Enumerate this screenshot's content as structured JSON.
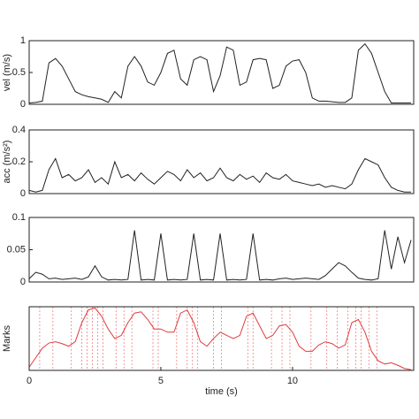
{
  "chart_data": [
    {
      "type": "line",
      "ylabel": "vel (m/s)",
      "xlim": [
        0,
        14.6
      ],
      "ylim": [
        0,
        1
      ],
      "yticks": [
        0,
        0.5,
        1
      ],
      "x": [
        0,
        0.25,
        0.5,
        0.75,
        1,
        1.25,
        1.5,
        1.75,
        2,
        2.25,
        2.5,
        2.75,
        3,
        3.25,
        3.5,
        3.75,
        4,
        4.25,
        4.5,
        4.75,
        5,
        5.25,
        5.5,
        5.75,
        6,
        6.25,
        6.5,
        6.75,
        7,
        7.25,
        7.5,
        7.75,
        8,
        8.25,
        8.5,
        8.75,
        9,
        9.25,
        9.5,
        9.75,
        10,
        10.25,
        10.5,
        10.75,
        11,
        11.25,
        11.5,
        11.75,
        12,
        12.25,
        12.5,
        12.75,
        13,
        13.25,
        13.5,
        13.75,
        14,
        14.25,
        14.5
      ],
      "series": [
        {
          "color": "#222222",
          "values": [
            0.02,
            0.03,
            0.05,
            0.65,
            0.72,
            0.6,
            0.4,
            0.2,
            0.15,
            0.12,
            0.1,
            0.08,
            0.03,
            0.2,
            0.1,
            0.6,
            0.75,
            0.6,
            0.35,
            0.3,
            0.5,
            0.8,
            0.85,
            0.4,
            0.3,
            0.7,
            0.75,
            0.7,
            0.2,
            0.45,
            0.9,
            0.85,
            0.3,
            0.35,
            0.7,
            0.72,
            0.7,
            0.25,
            0.3,
            0.6,
            0.68,
            0.7,
            0.5,
            0.1,
            0.05,
            0.05,
            0.04,
            0.03,
            0.03,
            0.1,
            0.85,
            0.95,
            0.8,
            0.5,
            0.2,
            0.02,
            0.02,
            0.02,
            0.02
          ]
        }
      ]
    },
    {
      "type": "line",
      "ylabel": "acc (m/s²)",
      "xlim": [
        0,
        14.6
      ],
      "ylim": [
        0,
        0.4
      ],
      "yticks": [
        0,
        0.2,
        0.4
      ],
      "x": [
        0,
        0.25,
        0.5,
        0.75,
        1,
        1.25,
        1.5,
        1.75,
        2,
        2.25,
        2.5,
        2.75,
        3,
        3.25,
        3.5,
        3.75,
        4,
        4.25,
        4.5,
        4.75,
        5,
        5.25,
        5.5,
        5.75,
        6,
        6.25,
        6.5,
        6.75,
        7,
        7.25,
        7.5,
        7.75,
        8,
        8.25,
        8.5,
        8.75,
        9,
        9.25,
        9.5,
        9.75,
        10,
        10.25,
        10.5,
        10.75,
        11,
        11.25,
        11.5,
        11.75,
        12,
        12.25,
        12.5,
        12.75,
        13,
        13.25,
        13.5,
        13.75,
        14,
        14.25,
        14.5
      ],
      "series": [
        {
          "color": "#222222",
          "values": [
            0.02,
            0.01,
            0.02,
            0.15,
            0.22,
            0.1,
            0.12,
            0.08,
            0.1,
            0.15,
            0.07,
            0.1,
            0.06,
            0.2,
            0.1,
            0.12,
            0.08,
            0.13,
            0.09,
            0.06,
            0.1,
            0.14,
            0.12,
            0.08,
            0.15,
            0.1,
            0.13,
            0.08,
            0.1,
            0.16,
            0.1,
            0.08,
            0.12,
            0.09,
            0.11,
            0.07,
            0.13,
            0.1,
            0.09,
            0.12,
            0.08,
            0.07,
            0.06,
            0.05,
            0.06,
            0.04,
            0.05,
            0.04,
            0.03,
            0.06,
            0.15,
            0.22,
            0.2,
            0.18,
            0.1,
            0.04,
            0.02,
            0.01,
            0.01
          ]
        }
      ]
    },
    {
      "type": "line",
      "xlim": [
        0,
        14.6
      ],
      "ylim": [
        0,
        0.1
      ],
      "yticks": [
        0,
        0.05,
        0.1
      ],
      "x": [
        0,
        0.25,
        0.5,
        0.75,
        1,
        1.25,
        1.5,
        1.75,
        2,
        2.25,
        2.5,
        2.75,
        3,
        3.25,
        3.5,
        3.75,
        4,
        4.25,
        4.5,
        4.75,
        5,
        5.25,
        5.5,
        5.75,
        6,
        6.25,
        6.5,
        6.75,
        7,
        7.25,
        7.5,
        7.75,
        8,
        8.25,
        8.5,
        8.75,
        9,
        9.25,
        9.5,
        9.75,
        10,
        10.25,
        10.5,
        10.75,
        11,
        11.25,
        11.5,
        11.75,
        12,
        12.25,
        12.5,
        12.75,
        13,
        13.25,
        13.5,
        13.75,
        14,
        14.25,
        14.5
      ],
      "series": [
        {
          "color": "#222222",
          "values": [
            0.005,
            0.015,
            0.012,
            0.005,
            0.006,
            0.004,
            0.005,
            0.006,
            0.004,
            0.008,
            0.025,
            0.008,
            0.003,
            0.004,
            0.003,
            0.004,
            0.08,
            0.003,
            0.004,
            0.003,
            0.075,
            0.003,
            0.004,
            0.003,
            0.004,
            0.075,
            0.003,
            0.004,
            0.003,
            0.075,
            0.003,
            0.004,
            0.003,
            0.004,
            0.075,
            0.003,
            0.004,
            0.003,
            0.005,
            0.006,
            0.004,
            0.005,
            0.006,
            0.005,
            0.004,
            0.01,
            0.02,
            0.03,
            0.025,
            0.015,
            0.006,
            0.004,
            0.003,
            0.005,
            0.08,
            0.02,
            0.07,
            0.03,
            0.065
          ]
        }
      ]
    },
    {
      "type": "line",
      "ylabel": "Marks",
      "xlabel": "time (s)",
      "xlim": [
        0,
        14.6
      ],
      "ylim": [
        0,
        1
      ],
      "xticks": [
        0,
        5,
        10
      ],
      "x": [
        0,
        0.25,
        0.5,
        0.75,
        1,
        1.25,
        1.5,
        1.75,
        2,
        2.25,
        2.5,
        2.75,
        3,
        3.25,
        3.5,
        3.75,
        4,
        4.25,
        4.5,
        4.75,
        5,
        5.25,
        5.5,
        5.75,
        6,
        6.25,
        6.5,
        6.75,
        7,
        7.25,
        7.5,
        7.75,
        8,
        8.25,
        8.5,
        8.75,
        9,
        9.25,
        9.5,
        9.75,
        10,
        10.25,
        10.5,
        10.75,
        11,
        11.25,
        11.5,
        11.75,
        12,
        12.25,
        12.5,
        12.75,
        13,
        13.25,
        13.5,
        13.75,
        14,
        14.25,
        14.5
      ],
      "events": [
        0.4,
        0.9,
        1.6,
        2.0,
        2.2,
        2.4,
        2.6,
        2.8,
        3.3,
        3.6,
        3.9,
        4.7,
        4.9,
        5.6,
        6.0,
        6.2,
        6.4,
        7.0,
        7.3,
        8.3,
        8.5,
        9.2,
        9.6,
        9.9,
        10.7,
        11.3,
        11.7,
        12.1,
        12.4,
        12.6,
        12.9,
        13.2
      ],
      "events_color": "#f08080",
      "series": [
        {
          "color": "#e03c3c",
          "values": [
            0.05,
            0.2,
            0.35,
            0.43,
            0.45,
            0.42,
            0.38,
            0.45,
            0.75,
            0.95,
            0.98,
            0.85,
            0.65,
            0.5,
            0.55,
            0.75,
            0.9,
            0.92,
            0.8,
            0.65,
            0.65,
            0.6,
            0.6,
            0.9,
            0.95,
            0.75,
            0.45,
            0.38,
            0.5,
            0.6,
            0.55,
            0.5,
            0.55,
            0.85,
            0.9,
            0.7,
            0.5,
            0.55,
            0.7,
            0.72,
            0.6,
            0.38,
            0.3,
            0.3,
            0.4,
            0.45,
            0.42,
            0.35,
            0.4,
            0.75,
            0.8,
            0.6,
            0.3,
            0.15,
            0.1,
            0.12,
            0.08,
            0.03,
            0.01
          ]
        }
      ]
    }
  ]
}
